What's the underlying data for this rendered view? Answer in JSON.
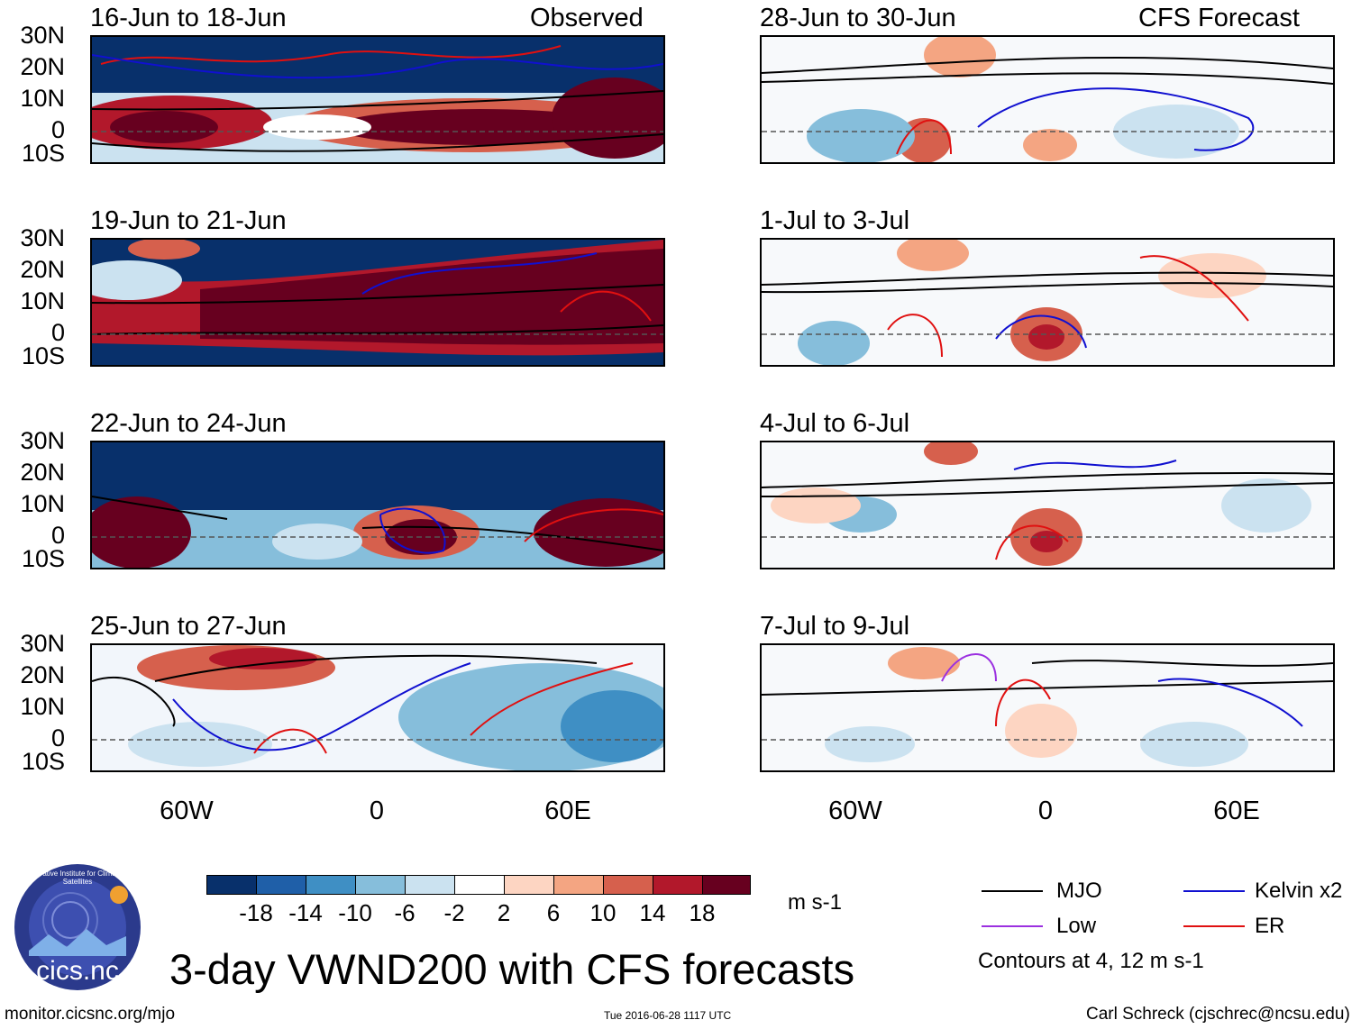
{
  "header": {
    "observed_label": "Observed",
    "forecast_label": "CFS Forecast"
  },
  "panels": {
    "observed": [
      {
        "title": "16-Jun to 18-Jun"
      },
      {
        "title": "19-Jun to 21-Jun"
      },
      {
        "title": "22-Jun to 24-Jun"
      },
      {
        "title": "25-Jun to 27-Jun"
      }
    ],
    "forecast": [
      {
        "title": "28-Jun to 30-Jun"
      },
      {
        "title": "1-Jul to 3-Jul"
      },
      {
        "title": "4-Jul to 6-Jul"
      },
      {
        "title": "7-Jul to 9-Jul"
      }
    ]
  },
  "axes": {
    "lat_labels": [
      "30N",
      "20N",
      "10N",
      "0",
      "10S"
    ],
    "lon_labels": [
      "60W",
      "0",
      "60E"
    ]
  },
  "colorbar": {
    "labels": [
      "-18",
      "-14",
      "-10",
      "-6",
      "-2",
      "2",
      "6",
      "10",
      "14",
      "18"
    ],
    "colors": [
      "#08306b",
      "#1f5fa8",
      "#3f8fc4",
      "#86bedb",
      "#cbe2f0",
      "#ffffff",
      "#fdd5c2",
      "#f4a582",
      "#d6604d",
      "#b2182b",
      "#67001f"
    ],
    "units": "m s-1"
  },
  "legend": {
    "mjo": {
      "label": "MJO",
      "color": "#000000"
    },
    "kelvin": {
      "label": "Kelvin x2",
      "color": "#1010d0"
    },
    "low": {
      "label": "Low",
      "color": "#9b30e0"
    },
    "er": {
      "label": "ER",
      "color": "#e01010"
    },
    "note": "Contours at 4, 12 m s-1"
  },
  "footer": {
    "main_title": "3-day VWND200 with CFS forecasts",
    "url": "monitor.cicsnc.org/mjo",
    "timestamp": "Tue 2016-06-28 1117 UTC",
    "author": "Carl Schreck (cjschrec@ncsu.edu)",
    "logo_text": "cics.nc",
    "logo_ring_text": "Cooperative Institute for Climate and Satellites"
  }
}
